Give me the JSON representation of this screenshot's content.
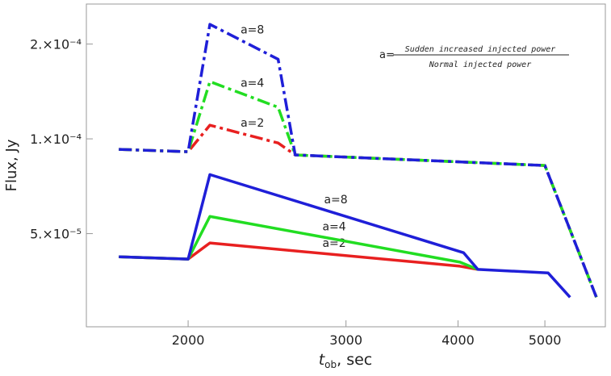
{
  "chart_data": {
    "type": "line",
    "x_label": {
      "symbol": "t",
      "subscript": "ob",
      "unit": ",  sec"
    },
    "y_label": "Flux, Jy",
    "log_x": true,
    "log_y": true,
    "xlim": [
      1540,
      5840
    ],
    "ylim": [
      2.53e-05,
      0.000268
    ],
    "xticks": [
      2000,
      3000,
      4000,
      5000
    ],
    "yticks": [
      {
        "value": 5e-05,
        "label": "5.×10⁻⁵"
      },
      {
        "value": 0.0001,
        "label": "1.×10⁻⁴"
      },
      {
        "value": 0.0002,
        "label": "2.×10⁻⁴"
      }
    ],
    "annotation": {
      "lhs": "a=",
      "numerator": "Sudden increased injected power",
      "denominator": "Normal injected power"
    },
    "series": [
      {
        "name": "a=2",
        "color": "#e82020",
        "style": "dashed",
        "x": [
          1674,
          2000,
          2115,
          2520,
          2633,
          5000,
          5707
        ],
        "values": [
          9.26e-05,
          9.1e-05,
          0.0001105,
          9.7e-05,
          8.89e-05,
          8.23e-05,
          3.14e-05
        ]
      },
      {
        "name": "a=4",
        "color": "#22dd22",
        "style": "dashed",
        "x": [
          1674,
          2000,
          2115,
          2520,
          2633,
          5000,
          5707
        ],
        "values": [
          9.26e-05,
          9.1e-05,
          0.000152,
          0.000126,
          8.89e-05,
          8.23e-05,
          3.14e-05
        ]
      },
      {
        "name": "a=8",
        "color": "#1f1fd8",
        "style": "dashed",
        "x": [
          1674,
          2000,
          2115,
          2520,
          2633,
          5000,
          5707
        ],
        "values": [
          9.26e-05,
          9.1e-05,
          0.000231,
          0.000179,
          8.89e-05,
          8.23e-05,
          3.14e-05
        ]
      },
      {
        "name": "a=2",
        "color": "#e82020",
        "style": "solid",
        "x": [
          1674,
          2000,
          2115,
          4020,
          4209
        ],
        "values": [
          4.22e-05,
          4.15e-05,
          4.67e-05,
          3.94e-05,
          3.85e-05
        ]
      },
      {
        "name": "a=4",
        "color": "#22dd22",
        "style": "solid",
        "x": [
          1674,
          2000,
          2115,
          4020,
          4209
        ],
        "values": [
          4.22e-05,
          4.15e-05,
          5.67e-05,
          4.06e-05,
          3.85e-05
        ]
      },
      {
        "name": "a=8",
        "color": "#1f1fd8",
        "style": "solid",
        "x": [
          1674,
          2000,
          2115,
          4057,
          4209,
          5042,
          5334
        ],
        "values": [
          4.22e-05,
          4.15e-05,
          7.7e-05,
          4.35e-05,
          3.85e-05,
          3.75e-05,
          3.14e-05
        ]
      }
    ]
  }
}
